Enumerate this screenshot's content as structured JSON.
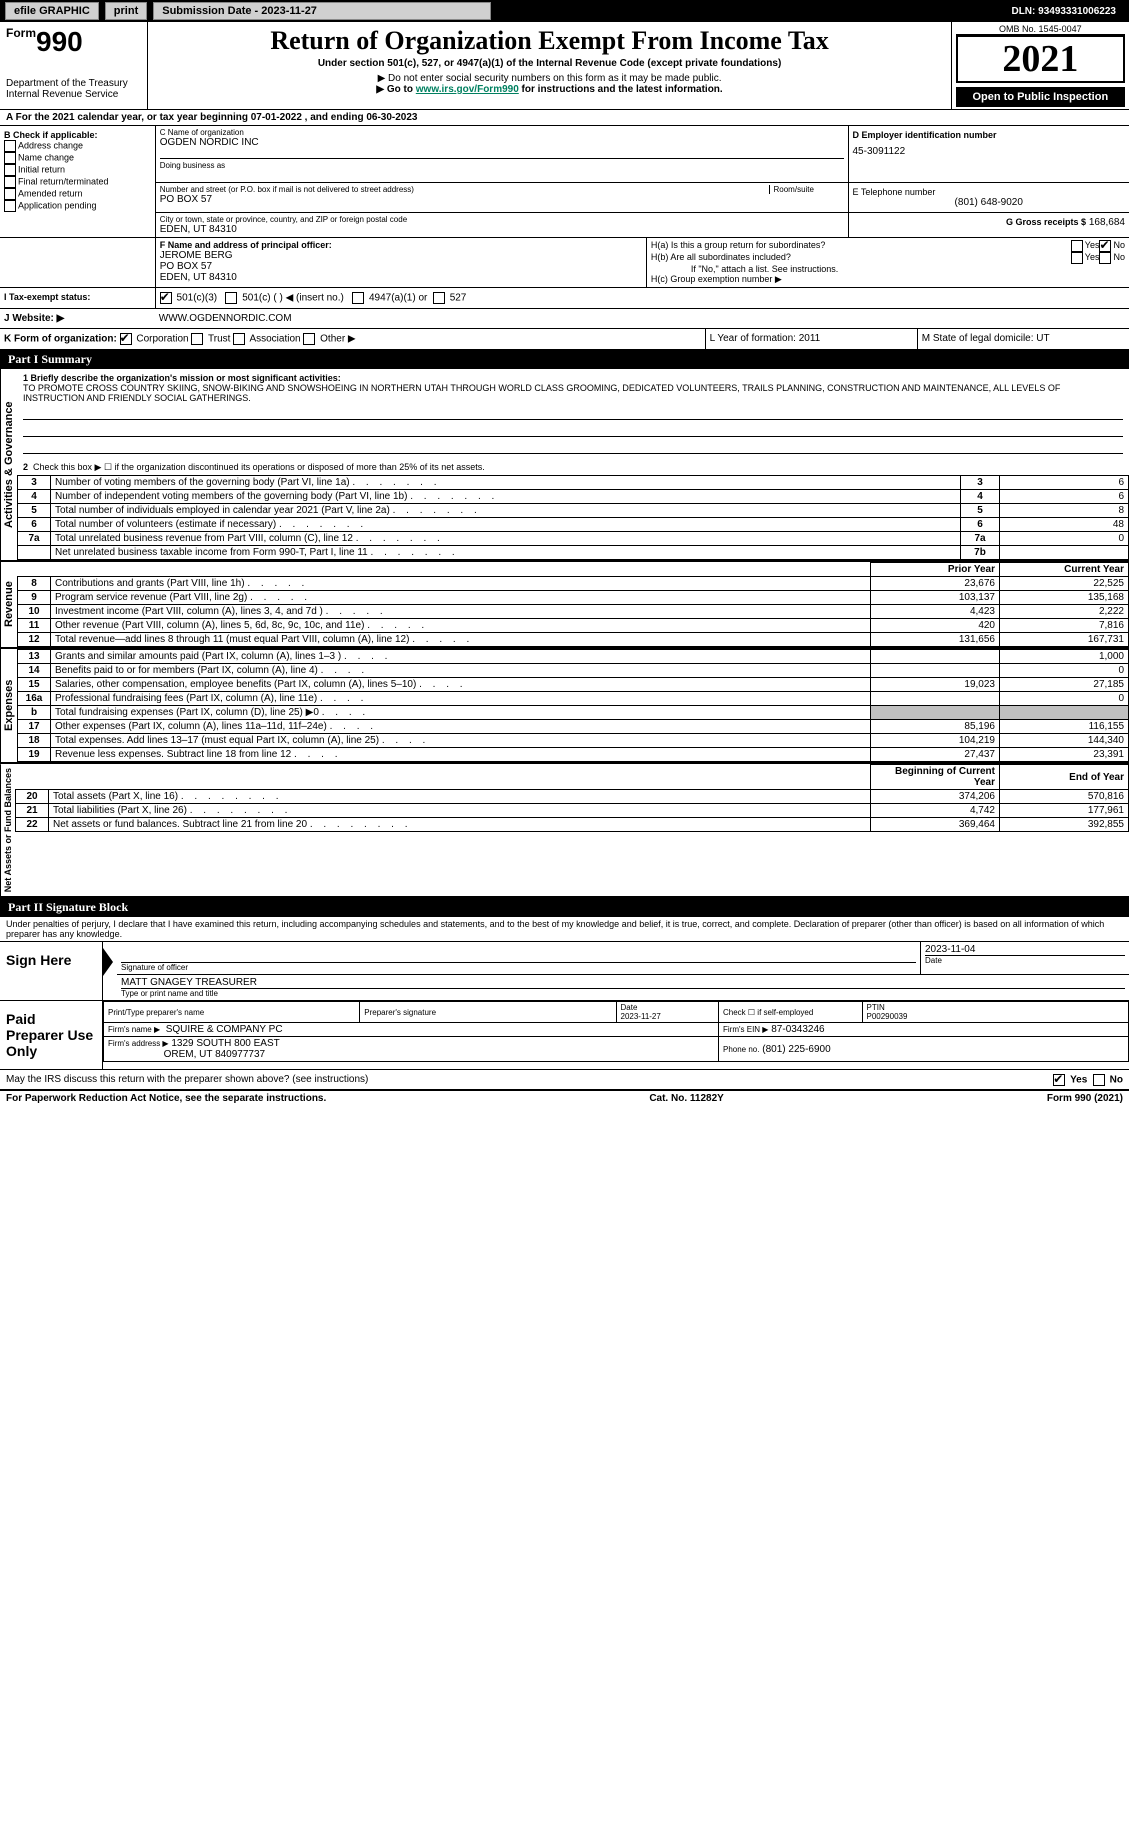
{
  "top": {
    "efile": "efile GRAPHIC",
    "print": "print",
    "sub_label": "Submission Date - 2023-11-27",
    "dln": "DLN: 93493331006223"
  },
  "header": {
    "form_label": "Form",
    "form_no": "990",
    "title": "Return of Organization Exempt From Income Tax",
    "subtitle": "Under section 501(c), 527, or 4947(a)(1) of the Internal Revenue Code (except private foundations)",
    "note1": "▶ Do not enter social security numbers on this form as it may be made public.",
    "note2_pre": "▶ Go to ",
    "note2_link": "www.irs.gov/Form990",
    "note2_post": " for instructions and the latest information.",
    "dept": "Department of the Treasury",
    "irs": "Internal Revenue Service",
    "omb": "OMB No. 1545-0047",
    "year": "2021",
    "open": "Open to Public Inspection"
  },
  "A": {
    "text": "For the 2021 calendar year, or tax year beginning 07-01-2022    , and ending 06-30-2023"
  },
  "B": {
    "label": "B Check if applicable:",
    "opts": [
      "Address change",
      "Name change",
      "Initial return",
      "Final return/terminated",
      "Amended return",
      "Application pending"
    ]
  },
  "C": {
    "name_label": "C Name of organization",
    "name": "OGDEN NORDIC INC",
    "dba_label": "Doing business as",
    "street_label": "Number and street (or P.O. box if mail is not delivered to street address)",
    "room_label": "Room/suite",
    "street": "PO BOX 57",
    "city_label": "City or town, state or province, country, and ZIP or foreign postal code",
    "city": "EDEN, UT  84310"
  },
  "D": {
    "label": "D Employer identification number",
    "value": "45-3091122"
  },
  "E": {
    "label": "E Telephone number",
    "value": "(801) 648-9020"
  },
  "G": {
    "label": "G Gross receipts $",
    "value": "168,684"
  },
  "F": {
    "label": "F  Name and address of principal officer:",
    "l1": "JEROME BERG",
    "l2": "PO BOX 57",
    "l3": "EDEN, UT  84310"
  },
  "H": {
    "a": "H(a)  Is this a group return for subordinates?",
    "b": "H(b)  Are all subordinates included?",
    "note": "If \"No,\" attach a list. See instructions.",
    "c": "H(c)  Group exemption number ▶"
  },
  "I": {
    "label": "Tax-exempt status:",
    "o1": "501(c)(3)",
    "o2": "501(c) (   ) ◀ (insert no.)",
    "o3": "4947(a)(1) or",
    "o4": "527"
  },
  "J": {
    "label": "Website: ▶",
    "value": "WWW.OGDENNORDIC.COM"
  },
  "K": {
    "label": "K Form of organization:",
    "o1": "Corporation",
    "o2": "Trust",
    "o3": "Association",
    "o4": "Other ▶"
  },
  "L": {
    "label": "L Year of formation: 2011"
  },
  "M": {
    "label": "M State of legal domicile: UT"
  },
  "partI": {
    "header": "Part I      Summary",
    "line1_label": "1  Briefly describe the organization's mission or most significant activities:",
    "mission": "TO PROMOTE CROSS COUNTRY SKIING, SNOW-BIKING AND SNOWSHOEING IN NORTHERN UTAH THROUGH WORLD CLASS GROOMING, DEDICATED VOLUNTEERS, TRAILS PLANNING, CONSTRUCTION AND MAINTENANCE, ALL LEVELS OF INSTRUCTION AND FRIENDLY SOCIAL GATHERINGS.",
    "line2": "Check this box ▶ ☐  if the organization discontinued its operations or disposed of more than 25% of its net assets.",
    "gov_label": "Activities & Governance",
    "rev_label": "Revenue",
    "exp_label": "Expenses",
    "net_label": "Net Assets or Fund Balances",
    "col_prior": "Prior Year",
    "col_current": "Current Year",
    "col_begin": "Beginning of Current Year",
    "col_end": "End of Year",
    "rows_gov": [
      {
        "n": "3",
        "d": "Number of voting members of the governing body (Part VI, line 1a)",
        "c": "3",
        "v": "6"
      },
      {
        "n": "4",
        "d": "Number of independent voting members of the governing body (Part VI, line 1b)",
        "c": "4",
        "v": "6"
      },
      {
        "n": "5",
        "d": "Total number of individuals employed in calendar year 2021 (Part V, line 2a)",
        "c": "5",
        "v": "8"
      },
      {
        "n": "6",
        "d": "Total number of volunteers (estimate if necessary)",
        "c": "6",
        "v": "48"
      },
      {
        "n": "7a",
        "d": "Total unrelated business revenue from Part VIII, column (C), line 12",
        "c": "7a",
        "v": "0"
      },
      {
        "n": "",
        "d": "Net unrelated business taxable income from Form 990-T, Part I, line 11",
        "c": "7b",
        "v": ""
      }
    ],
    "rows_rev": [
      {
        "n": "8",
        "d": "Contributions and grants (Part VIII, line 1h)",
        "p": "23,676",
        "v": "22,525"
      },
      {
        "n": "9",
        "d": "Program service revenue (Part VIII, line 2g)",
        "p": "103,137",
        "v": "135,168"
      },
      {
        "n": "10",
        "d": "Investment income (Part VIII, column (A), lines 3, 4, and 7d )",
        "p": "4,423",
        "v": "2,222"
      },
      {
        "n": "11",
        "d": "Other revenue (Part VIII, column (A), lines 5, 6d, 8c, 9c, 10c, and 11e)",
        "p": "420",
        "v": "7,816"
      },
      {
        "n": "12",
        "d": "Total revenue—add lines 8 through 11 (must equal Part VIII, column (A), line 12)",
        "p": "131,656",
        "v": "167,731"
      }
    ],
    "rows_exp": [
      {
        "n": "13",
        "d": "Grants and similar amounts paid (Part IX, column (A), lines 1–3 )",
        "p": "",
        "v": "1,000"
      },
      {
        "n": "14",
        "d": "Benefits paid to or for members (Part IX, column (A), line 4)",
        "p": "",
        "v": "0"
      },
      {
        "n": "15",
        "d": "Salaries, other compensation, employee benefits (Part IX, column (A), lines 5–10)",
        "p": "19,023",
        "v": "27,185"
      },
      {
        "n": "16a",
        "d": "Professional fundraising fees (Part IX, column (A), line 11e)",
        "p": "",
        "v": "0"
      },
      {
        "n": "b",
        "d": "Total fundraising expenses (Part IX, column (D), line 25) ▶0",
        "p": "__SHADE__",
        "v": "__SHADE__"
      },
      {
        "n": "17",
        "d": "Other expenses (Part IX, column (A), lines 11a–11d, 11f–24e)",
        "p": "85,196",
        "v": "116,155"
      },
      {
        "n": "18",
        "d": "Total expenses. Add lines 13–17 (must equal Part IX, column (A), line 25)",
        "p": "104,219",
        "v": "144,340"
      },
      {
        "n": "19",
        "d": "Revenue less expenses. Subtract line 18 from line 12",
        "p": "27,437",
        "v": "23,391"
      }
    ],
    "rows_net": [
      {
        "n": "20",
        "d": "Total assets (Part X, line 16)",
        "p": "374,206",
        "v": "570,816"
      },
      {
        "n": "21",
        "d": "Total liabilities (Part X, line 26)",
        "p": "4,742",
        "v": "177,961"
      },
      {
        "n": "22",
        "d": "Net assets or fund balances. Subtract line 21 from line 20",
        "p": "369,464",
        "v": "392,855"
      }
    ]
  },
  "partII": {
    "header": "Part II      Signature Block",
    "decl": "Under penalties of perjury, I declare that I have examined this return, including accompanying schedules and statements, and to the best of my knowledge and belief, it is true, correct, and complete. Declaration of preparer (other than officer) is based on all information of which preparer has any knowledge.",
    "sign_here": "Sign Here",
    "sig_officer": "Signature of officer",
    "date": "Date",
    "date_val": "2023-11-04",
    "name_title": "MATT GNAGEY TREASURER",
    "type_name": "Type or print name and title",
    "paid": "Paid Preparer Use Only",
    "prep_name_h": "Print/Type preparer's name",
    "prep_sig_h": "Preparer's signature",
    "date_h": "Date",
    "date2": "2023-11-27",
    "check_self": "Check ☐ if self-employed",
    "ptin_h": "PTIN",
    "ptin": "P00290039",
    "firm_name_l": "Firm's name    ▶",
    "firm_name": "SQUIRE & COMPANY PC",
    "firm_ein_l": "Firm's EIN ▶",
    "firm_ein": "87-0343246",
    "firm_addr_l": "Firm's address ▶",
    "firm_addr1": "1329 SOUTH 800 EAST",
    "firm_addr2": "OREM, UT  840977737",
    "phone_l": "Phone no.",
    "phone": "(801) 225-6900",
    "discuss": "May the IRS discuss this return with the preparer shown above? (see instructions)",
    "yes": "Yes",
    "no": "No"
  },
  "footer": {
    "l": "For Paperwork Reduction Act Notice, see the separate instructions.",
    "c": "Cat. No. 11282Y",
    "r": "Form 990 (2021)"
  }
}
